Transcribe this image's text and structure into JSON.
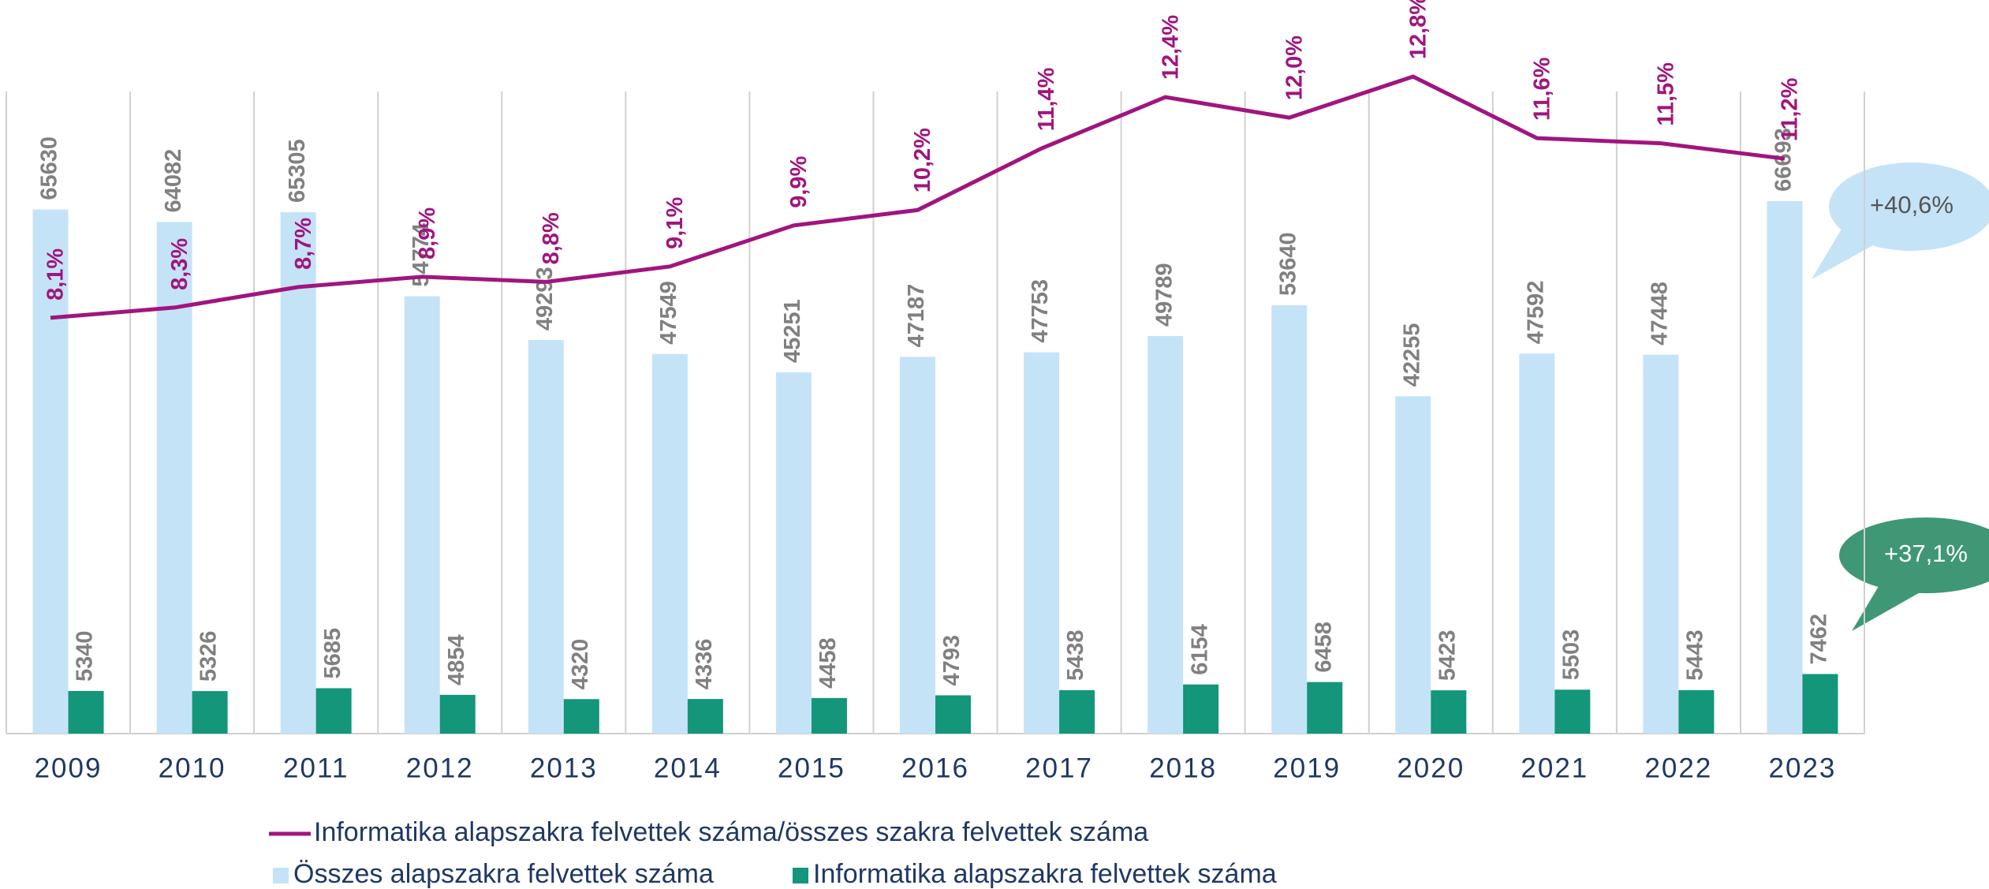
{
  "chart_data": {
    "type": "bar",
    "categories": [
      "2009",
      "2010",
      "2011",
      "2012",
      "2013",
      "2014",
      "2015",
      "2016",
      "2017",
      "2018",
      "2019",
      "2020",
      "2021",
      "2022",
      "2023"
    ],
    "series": [
      {
        "name": "Összes alapszakra felvettek száma",
        "type": "bar",
        "color": "#c5e3f7",
        "values": [
          65630,
          64082,
          65305,
          54774,
          49293,
          47549,
          45251,
          47187,
          47753,
          49789,
          53640,
          42255,
          47592,
          47448,
          66693
        ]
      },
      {
        "name": "Informatika alapszakra felvettek száma",
        "type": "bar",
        "color": "#13967a",
        "values": [
          5340,
          5326,
          5685,
          4854,
          4320,
          4336,
          4458,
          4793,
          5438,
          6154,
          6458,
          5423,
          5503,
          5443,
          7462
        ]
      },
      {
        "name": "Informatika alapszakra felvettek száma/összes szakra felvettek száma",
        "type": "line",
        "axis": "y2",
        "color": "#a0157f",
        "values": [
          8.1,
          8.3,
          8.7,
          8.9,
          8.8,
          9.1,
          9.9,
          10.2,
          11.4,
          12.4,
          12.0,
          12.8,
          11.6,
          11.5,
          11.2
        ],
        "value_labels": [
          "8,1%",
          "8,3%",
          "8,7%",
          "8,9%",
          "8,8%",
          "9,1%",
          "9,9%",
          "10,2%",
          "11,4%",
          "12,4%",
          "12,0%",
          "12,8%",
          "11,6%",
          "11,5%",
          "11,2%"
        ]
      }
    ],
    "ylim": [
      0,
      90000
    ],
    "y2lim": [
      0,
      14
    ],
    "annotations": [
      "+40,6%",
      "+37,1%"
    ]
  }
}
